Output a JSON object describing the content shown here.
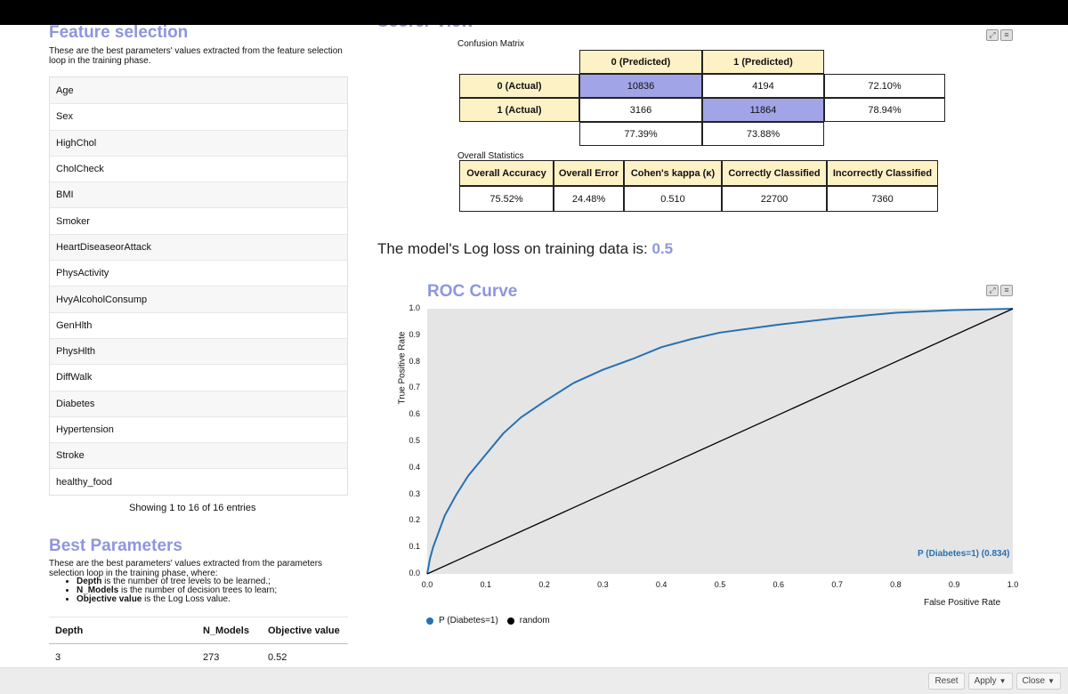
{
  "feature_selection": {
    "title": "Feature selection",
    "description": "These are the best parameters' values extracted from the feature selection loop in the training phase.",
    "features": [
      "Age",
      "Sex",
      "HighChol",
      "CholCheck",
      "BMI",
      "Smoker",
      "HeartDiseaseorAttack",
      "PhysActivity",
      "HvyAlcoholConsump",
      "GenHlth",
      "PhysHlth",
      "DiffWalk",
      "Diabetes",
      "Hypertension",
      "Stroke",
      "healthy_food"
    ],
    "showing": "Showing 1 to 16 of 16 entries"
  },
  "best_parameters": {
    "title": "Best Parameters",
    "description": "These are the best parameters' values extracted from the parameters selection loop in the training phase, where:",
    "bullets": [
      {
        "term": "Depth",
        "text": " is the number of tree levels to be learned.;"
      },
      {
        "term": "N_Models",
        "text": " is the number of decision trees to learn;"
      },
      {
        "term": "Objective value",
        "text": " is the Log Loss value."
      }
    ],
    "headers": [
      "Depth",
      "N_Models",
      "Objective value"
    ],
    "row": [
      "3",
      "273",
      "0.52"
    ]
  },
  "scorer": {
    "title": "Scorer View",
    "confusion_label": "Confusion Matrix",
    "col_headers": [
      "0 (Predicted)",
      "1 (Predicted)"
    ],
    "row_headers": [
      "0 (Actual)",
      "1 (Actual)"
    ],
    "cells": [
      [
        "10836",
        "4194"
      ],
      [
        "3166",
        "11864"
      ]
    ],
    "row_pct": [
      "72.10%",
      "78.94%"
    ],
    "col_pct": [
      "77.39%",
      "73.88%"
    ],
    "stats_label": "Overall Statistics",
    "stats_headers": [
      "Overall Accuracy",
      "Overall Error",
      "Cohen's kappa (κ)",
      "Correctly Classified",
      "Incorrectly Classified"
    ],
    "stats_values": [
      "75.52%",
      "24.48%",
      "0.510",
      "22700",
      "7360"
    ]
  },
  "logloss": {
    "text": "The model's Log loss on training data is: ",
    "value": "0.5"
  },
  "roc": {
    "title": "ROC Curve",
    "ylabel": "True Positive Rate",
    "xlabel": "False Positive Rate",
    "line_label": "P (Diabetes=1) (0.834)",
    "legend": [
      "P (Diabetes=1)",
      "random"
    ],
    "colors": {
      "curve": "#2670b2",
      "random": "#000000"
    }
  },
  "chart_data": {
    "type": "line",
    "title": "ROC Curve",
    "xlabel": "False Positive Rate",
    "ylabel": "True Positive Rate",
    "xlim": [
      0,
      1
    ],
    "ylim": [
      0,
      1
    ],
    "xticks": [
      "0.0",
      "0.1",
      "0.2",
      "0.3",
      "0.4",
      "0.5",
      "0.6",
      "0.7",
      "0.8",
      "0.9",
      "1.0"
    ],
    "yticks": [
      "0.0",
      "0.1",
      "0.2",
      "0.3",
      "0.4",
      "0.5",
      "0.6",
      "0.7",
      "0.8",
      "0.9",
      "1.0"
    ],
    "series": [
      {
        "name": "P (Diabetes=1)",
        "auc": 0.834,
        "x": [
          0,
          0.005,
          0.01,
          0.02,
          0.03,
          0.05,
          0.07,
          0.1,
          0.13,
          0.16,
          0.2,
          0.25,
          0.3,
          0.35,
          0.4,
          0.45,
          0.5,
          0.6,
          0.7,
          0.8,
          0.9,
          1.0
        ],
        "y": [
          0,
          0.06,
          0.1,
          0.16,
          0.22,
          0.3,
          0.37,
          0.45,
          0.53,
          0.59,
          0.65,
          0.72,
          0.77,
          0.81,
          0.855,
          0.885,
          0.91,
          0.94,
          0.965,
          0.985,
          0.995,
          1.0
        ]
      },
      {
        "name": "random",
        "x": [
          0,
          1
        ],
        "y": [
          0,
          1
        ]
      }
    ],
    "grid": false,
    "legend_position": "bottom-left"
  },
  "footer": {
    "reset": "Reset",
    "apply": "Apply",
    "close": "Close"
  }
}
